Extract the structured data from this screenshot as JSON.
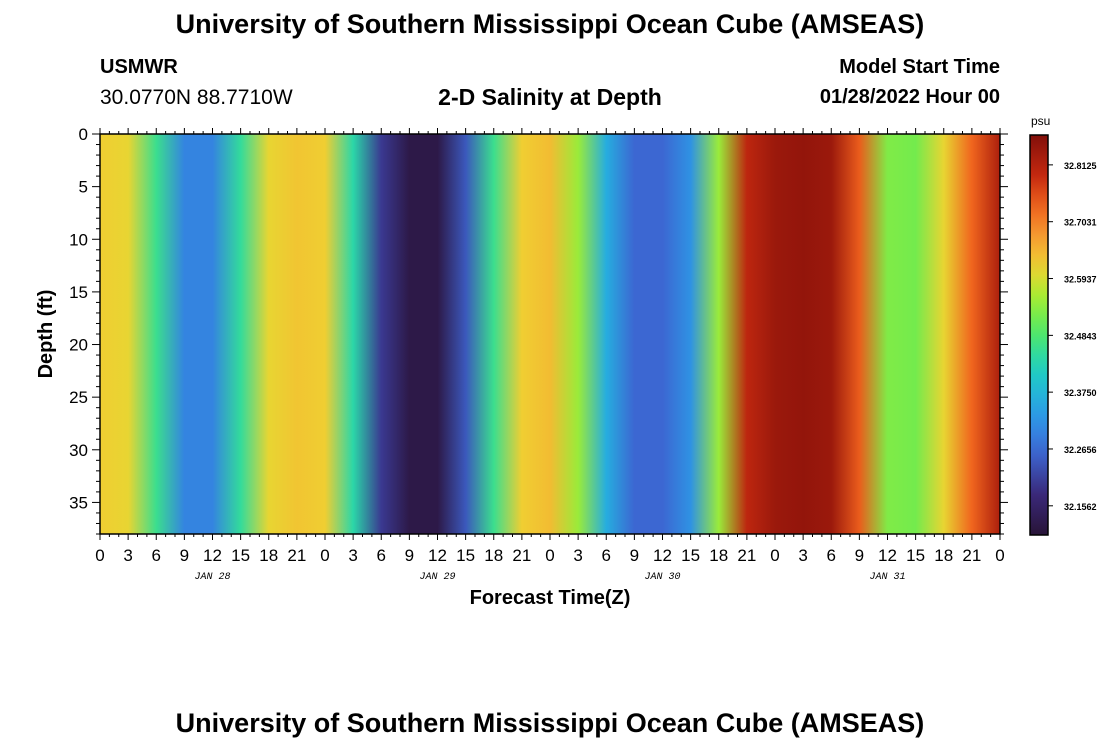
{
  "header": {
    "title": "University of Southern Mississippi Ocean Cube (AMSEAS)",
    "footer_title": "University of Southern Mississippi Ocean Cube (AMSEAS)",
    "station": "USMWR",
    "coordinates": "30.0770N  88.7710W",
    "plot_title": "2-D Salinity at Depth",
    "model_start_label": "Model Start Time",
    "model_start_value": "01/28/2022 Hour 00"
  },
  "chart_data": {
    "type": "heatmap",
    "title": "2-D Salinity at Depth",
    "xlabel": "Forecast Time(Z)",
    "ylabel": "Depth (ft)",
    "x_tick_labels": [
      "0",
      "3",
      "6",
      "9",
      "12",
      "15",
      "18",
      "21",
      "0",
      "3",
      "6",
      "9",
      "12",
      "15",
      "18",
      "21",
      "0",
      "3",
      "6",
      "9",
      "12",
      "15",
      "18",
      "21",
      "0",
      "3",
      "6",
      "9",
      "12",
      "15",
      "18",
      "21",
      "0"
    ],
    "date_labels": [
      "JAN 28",
      "JAN 29",
      "JAN 30",
      "JAN 31"
    ],
    "xlim_hours": [
      0,
      96
    ],
    "y_ticks": [
      "0",
      "5",
      "10",
      "15",
      "20",
      "25",
      "30",
      "35"
    ],
    "ylim": [
      0,
      38
    ],
    "y_inverted": true,
    "colorbar": {
      "unit": "psu",
      "ticks": [
        "32.8125",
        "32.7031",
        "32.5937",
        "32.4843",
        "32.3750",
        "32.2656",
        "32.1562"
      ],
      "range": [
        32.1,
        32.87
      ]
    },
    "series": [
      {
        "hours": [
          0,
          3,
          6,
          9,
          12,
          15,
          18,
          21,
          24,
          27,
          30,
          33,
          36,
          39,
          42,
          45,
          48,
          51,
          54,
          57,
          60,
          63,
          66,
          69,
          72,
          75,
          78,
          81,
          84,
          87,
          90,
          93,
          96
        ],
        "salinity": [
          32.62,
          32.61,
          32.46,
          32.3,
          32.3,
          32.45,
          32.61,
          32.63,
          32.62,
          32.44,
          32.2,
          32.12,
          32.12,
          32.24,
          32.46,
          32.62,
          32.64,
          32.55,
          32.36,
          32.26,
          32.26,
          32.32,
          32.55,
          32.8,
          32.84,
          32.85,
          32.84,
          32.74,
          32.53,
          32.52,
          32.61,
          32.73,
          32.82
        ]
      }
    ]
  }
}
